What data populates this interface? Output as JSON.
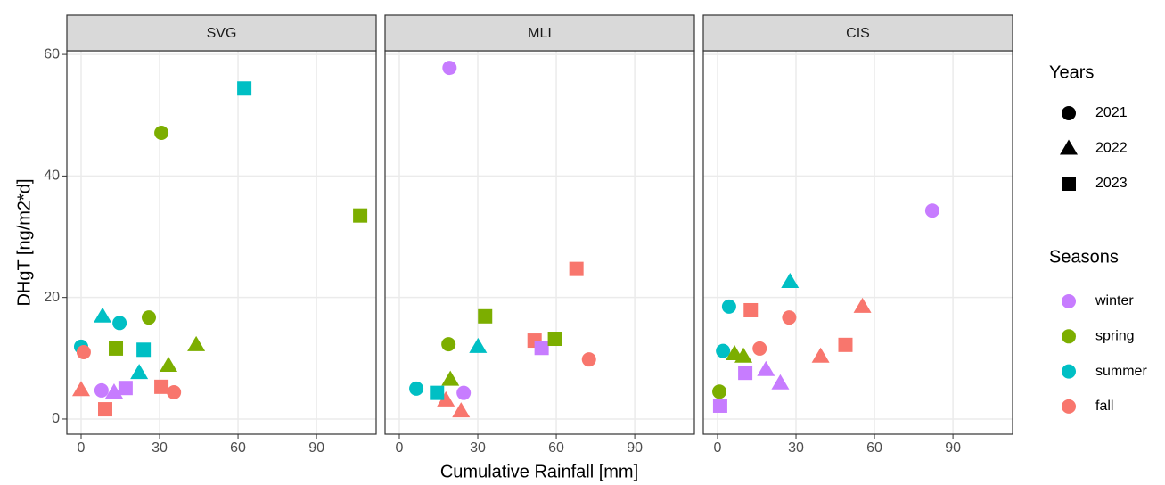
{
  "chart_data": {
    "type": "scatter",
    "xlabel": "Cumulative Rainfall [mm]",
    "ylabel": "DHgT [ng/m2*d]",
    "xlim": [
      -5.45,
      112.8
    ],
    "ylim": [
      -2.5,
      60.6
    ],
    "xticks": [
      0,
      30,
      60,
      90
    ],
    "yticks": [
      0,
      20,
      40,
      60
    ],
    "grid": true,
    "legends": {
      "years": {
        "title": "Years",
        "items": [
          {
            "name": "2021",
            "shape": "circle"
          },
          {
            "name": "2022",
            "shape": "triangle"
          },
          {
            "name": "2023",
            "shape": "square"
          }
        ]
      },
      "seasons": {
        "title": "Seasons",
        "items": [
          {
            "name": "winter",
            "color": "#c77cff"
          },
          {
            "name": "spring",
            "color": "#7cae00"
          },
          {
            "name": "summer",
            "color": "#00bfc4"
          },
          {
            "name": "fall",
            "color": "#f8766d"
          }
        ]
      }
    },
    "facets": [
      {
        "title": "SVG",
        "points": {
          "x": [
            0,
            1,
            7.8,
            14.7,
            25.9,
            30.7,
            35.5,
            0,
            8.2,
            12.6,
            22.2,
            33.4,
            44,
            9.2,
            13.3,
            17,
            23.9,
            30.7,
            62.4,
            106.7
          ],
          "y": [
            11.9,
            11.0,
            4.7,
            15.8,
            16.7,
            47.1,
            4.4,
            4.8,
            16.9,
            4.4,
            7.6,
            8.8,
            12.2,
            1.6,
            11.6,
            5.1,
            11.4,
            5.3,
            54.4,
            33.5
          ],
          "season": [
            "summer",
            "fall",
            "winter",
            "summer",
            "spring",
            "spring",
            "fall",
            "fall",
            "summer",
            "winter",
            "summer",
            "spring",
            "spring",
            "fall",
            "spring",
            "winter",
            "summer",
            "fall",
            "summer",
            "spring"
          ],
          "year": [
            "2021",
            "2021",
            "2021",
            "2021",
            "2021",
            "2021",
            "2021",
            "2022",
            "2022",
            "2022",
            "2022",
            "2022",
            "2022",
            "2023",
            "2023",
            "2023",
            "2023",
            "2023",
            "2023",
            "2023"
          ]
        }
      },
      {
        "title": "MLI",
        "points": {
          "x": [
            19.2,
            18.8,
            6.5,
            24.6,
            72.5,
            19.5,
            17.8,
            23.6,
            30.1,
            14.4,
            32.8,
            51.7,
            54.4,
            59.5,
            67.7
          ],
          "y": [
            57.8,
            12.3,
            5.0,
            4.3,
            9.8,
            6.5,
            3.1,
            1.3,
            11.9,
            4.3,
            16.9,
            12.9,
            11.7,
            13.2,
            24.7
          ],
          "season": [
            "winter",
            "spring",
            "summer",
            "winter",
            "fall",
            "spring",
            "fall",
            "fall",
            "summer",
            "summer",
            "spring",
            "fall",
            "winter",
            "spring",
            "fall"
          ],
          "year": [
            "2021",
            "2021",
            "2021",
            "2021",
            "2021",
            "2022",
            "2022",
            "2022",
            "2022",
            "2023",
            "2023",
            "2023",
            "2023",
            "2023",
            "2023"
          ]
        }
      },
      {
        "title": "CIS",
        "points": {
          "x": [
            0.7,
            2.1,
            4.4,
            16.1,
            27.4,
            82.1,
            6.5,
            9.9,
            18.5,
            24,
            27.7,
            39.4,
            55.4,
            1,
            10.6,
            12.7,
            48.9
          ],
          "y": [
            4.5,
            11.2,
            18.5,
            11.6,
            16.7,
            34.3,
            10.7,
            10.3,
            8.1,
            5.9,
            22.6,
            10.3,
            18.5,
            2.2,
            7.6,
            17.9,
            12.2
          ],
          "season": [
            "spring",
            "summer",
            "summer",
            "fall",
            "fall",
            "winter",
            "spring",
            "spring",
            "winter",
            "winter",
            "summer",
            "fall",
            "fall",
            "winter",
            "winter",
            "fall",
            "fall"
          ],
          "year": [
            "2021",
            "2021",
            "2021",
            "2021",
            "2021",
            "2021",
            "2022",
            "2022",
            "2022",
            "2022",
            "2022",
            "2022",
            "2022",
            "2023",
            "2023",
            "2023",
            "2023"
          ]
        }
      }
    ]
  }
}
